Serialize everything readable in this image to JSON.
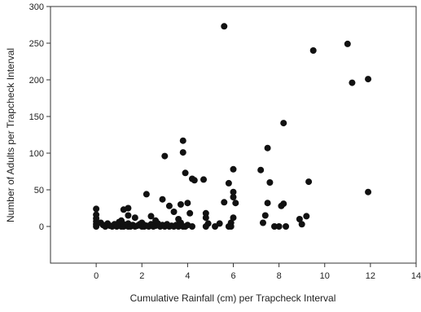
{
  "chart_data": {
    "type": "scatter",
    "title": "",
    "xlabel": "Cumulative Rainfall (cm) per Trapcheck Interval",
    "ylabel": "Number of Adults per Trapcheck Interval",
    "xlim": [
      -2,
      14
    ],
    "ylim": [
      -50,
      300
    ],
    "xticks": [
      0,
      2,
      4,
      6,
      8,
      10,
      12,
      14
    ],
    "yticks": [
      0,
      50,
      100,
      150,
      200,
      250,
      300
    ],
    "grid": false,
    "legend": "none",
    "marker_color": "#111111",
    "series": [
      {
        "points": [
          [
            0.0,
            24
          ],
          [
            0.0,
            16
          ],
          [
            0.0,
            11
          ],
          [
            0.0,
            7
          ],
          [
            0.0,
            3
          ],
          [
            0.0,
            0
          ],
          [
            0.2,
            5
          ],
          [
            0.3,
            2
          ],
          [
            0.4,
            0
          ],
          [
            0.5,
            4
          ],
          [
            0.6,
            1
          ],
          [
            0.7,
            0
          ],
          [
            0.8,
            3
          ],
          [
            0.9,
            0
          ],
          [
            1.0,
            6
          ],
          [
            1.0,
            2
          ],
          [
            1.1,
            0
          ],
          [
            1.1,
            8
          ],
          [
            1.2,
            0
          ],
          [
            1.2,
            3
          ],
          [
            1.3,
            1
          ],
          [
            1.4,
            0
          ],
          [
            1.4,
            4
          ],
          [
            1.5,
            0
          ],
          [
            1.6,
            2
          ],
          [
            1.7,
            0
          ],
          [
            1.8,
            1
          ],
          [
            1.9,
            3
          ],
          [
            2.0,
            0
          ],
          [
            2.0,
            5
          ],
          [
            2.1,
            0
          ],
          [
            2.1,
            2
          ],
          [
            2.2,
            1
          ],
          [
            2.3,
            0
          ],
          [
            2.4,
            3
          ],
          [
            2.5,
            0
          ],
          [
            2.6,
            1
          ],
          [
            2.7,
            4
          ],
          [
            2.8,
            0
          ],
          [
            2.9,
            2
          ],
          [
            3.0,
            0
          ],
          [
            3.1,
            3
          ],
          [
            3.2,
            0
          ],
          [
            3.3,
            1
          ],
          [
            3.4,
            0
          ],
          [
            3.5,
            2
          ],
          [
            3.6,
            0
          ],
          [
            3.7,
            5
          ],
          [
            3.8,
            0
          ],
          [
            3.9,
            0
          ],
          [
            4.0,
            2
          ],
          [
            4.2,
            0
          ],
          [
            1.2,
            23
          ],
          [
            1.4,
            25
          ],
          [
            1.4,
            15
          ],
          [
            1.7,
            12
          ],
          [
            2.2,
            44
          ],
          [
            2.4,
            14
          ],
          [
            2.6,
            8
          ],
          [
            2.9,
            37
          ],
          [
            3.0,
            96
          ],
          [
            3.2,
            28
          ],
          [
            3.4,
            20
          ],
          [
            3.6,
            10
          ],
          [
            3.7,
            30
          ],
          [
            3.8,
            117
          ],
          [
            3.8,
            101
          ],
          [
            3.9,
            73
          ],
          [
            4.0,
            32
          ],
          [
            4.1,
            18
          ],
          [
            4.3,
            63
          ],
          [
            4.2,
            65
          ],
          [
            4.7,
            64
          ],
          [
            4.8,
            18
          ],
          [
            4.8,
            12
          ],
          [
            4.9,
            4
          ],
          [
            4.8,
            0
          ],
          [
            5.2,
            0
          ],
          [
            5.4,
            4
          ],
          [
            5.6,
            273
          ],
          [
            5.8,
            59
          ],
          [
            5.6,
            33
          ],
          [
            5.9,
            5
          ],
          [
            5.8,
            0
          ],
          [
            6.0,
            78
          ],
          [
            6.0,
            47
          ],
          [
            6.0,
            40
          ],
          [
            6.1,
            32
          ],
          [
            6.0,
            12
          ],
          [
            5.9,
            0
          ],
          [
            7.2,
            77
          ],
          [
            7.3,
            5
          ],
          [
            7.5,
            107
          ],
          [
            7.6,
            60
          ],
          [
            7.5,
            32
          ],
          [
            7.4,
            15
          ],
          [
            7.8,
            0
          ],
          [
            8.0,
            0
          ],
          [
            8.2,
            141
          ],
          [
            8.2,
            31
          ],
          [
            8.1,
            28
          ],
          [
            8.3,
            0
          ],
          [
            8.9,
            10
          ],
          [
            9.0,
            3
          ],
          [
            9.3,
            61
          ],
          [
            9.2,
            14
          ],
          [
            9.5,
            240
          ],
          [
            11.0,
            249
          ],
          [
            11.2,
            196
          ],
          [
            11.9,
            201
          ],
          [
            11.9,
            47
          ]
        ]
      }
    ]
  }
}
